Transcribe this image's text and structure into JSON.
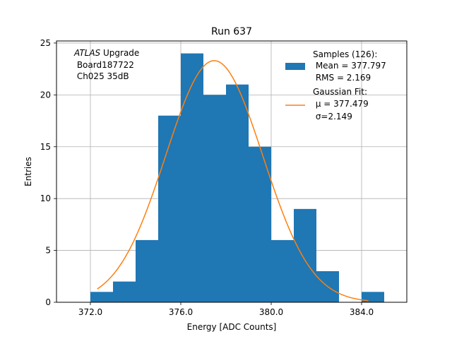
{
  "chart_data": {
    "type": "bar",
    "title": "Run 637",
    "xlabel": "Energy [ADC Counts]",
    "ylabel": "Entries",
    "xlim": [
      370.5,
      386.0
    ],
    "ylim": [
      0,
      25.2
    ],
    "xticks": [
      372.0,
      376.0,
      380.0,
      384.0
    ],
    "xtick_labels": [
      "372.0",
      "376.0",
      "380.0",
      "384.0"
    ],
    "yticks": [
      0,
      5,
      10,
      15,
      20,
      25
    ],
    "ytick_labels": [
      "0",
      "5",
      "10",
      "15",
      "20",
      "25"
    ],
    "grid": true,
    "bin_edges": [
      372.0,
      373.0,
      374.0,
      375.0,
      376.0,
      377.0,
      378.0,
      379.0,
      380.0,
      381.0,
      382.0,
      383.0,
      384.0,
      385.0
    ],
    "values": [
      1,
      2,
      6,
      18,
      24,
      20,
      21,
      15,
      6,
      9,
      3,
      0,
      1
    ],
    "hist_color": "#1f77b4",
    "fit": {
      "type": "gaussian",
      "mu": 377.479,
      "sigma": 2.149,
      "amplitude": 23.3,
      "x_range": [
        372.3,
        384.3
      ],
      "color": "#ff7f0e"
    },
    "annotation_lines": [
      "ATLAS Upgrade",
      " Board187722",
      " Ch025 35dB"
    ],
    "legend": {
      "position": "upper right",
      "hist_lines": [
        "Samples (126):",
        " Mean = 377.797",
        " RMS = 2.169"
      ],
      "fit_lines": [
        "Gaussian Fit:",
        " μ = 377.479",
        " σ=2.149"
      ]
    }
  }
}
